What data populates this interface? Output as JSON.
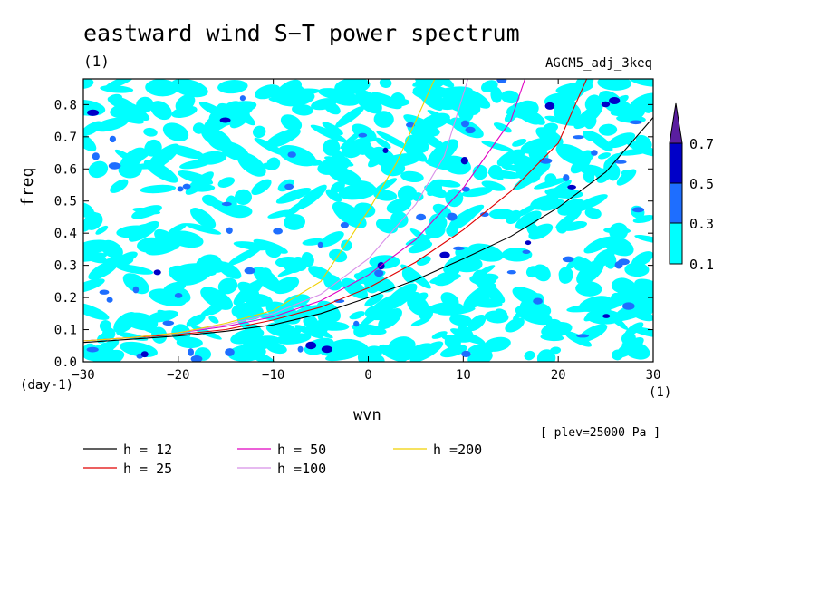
{
  "title": "eastward wind S−T power spectrum",
  "subtitle_unit": "(1)",
  "model_label": "AGCM5_adj_3keq",
  "plev_label": "[ plev=25000 Pa ]",
  "chart_data": {
    "type": "contour",
    "xlabel": "wvn",
    "ylabel": "freq",
    "x_unit": "(1)",
    "y_unit": "(day-1)",
    "xlim": [
      -30,
      30
    ],
    "ylim": [
      0,
      0.88
    ],
    "xticks": [
      -30,
      -20,
      -10,
      0,
      10,
      20,
      30
    ],
    "xtick_labels": [
      "−30",
      "−20",
      "−10",
      "0",
      "10",
      "20",
      "30"
    ],
    "yticks": [
      0.0,
      0.1,
      0.2,
      0.3,
      0.4,
      0.5,
      0.6,
      0.7,
      0.8
    ],
    "ytick_labels": [
      "0.0",
      "0.1",
      "0.2",
      "0.3",
      "0.4",
      "0.5",
      "0.6",
      "0.7",
      "0.8"
    ],
    "colorbar": {
      "levels": [
        0.1,
        0.3,
        0.5,
        0.7
      ],
      "level_labels": [
        "0.1",
        "0.3",
        "0.5",
        "0.7"
      ],
      "colors": [
        "#00ffff",
        "#1e6eff",
        "#0000c8",
        "#5a1ea0"
      ]
    },
    "dispersion_curves": [
      {
        "name": "h = 12",
        "color": "#000000",
        "points": [
          [
            -30,
            0.06
          ],
          [
            -25,
            0.07
          ],
          [
            -20,
            0.08
          ],
          [
            -15,
            0.095
          ],
          [
            -10,
            0.115
          ],
          [
            -5,
            0.15
          ],
          [
            0,
            0.2
          ],
          [
            5,
            0.255
          ],
          [
            10,
            0.32
          ],
          [
            15,
            0.39
          ],
          [
            20,
            0.48
          ],
          [
            25,
            0.59
          ],
          [
            30,
            0.76
          ]
        ]
      },
      {
        "name": "h = 25",
        "color": "#e00000",
        "points": [
          [
            -30,
            0.065
          ],
          [
            -25,
            0.075
          ],
          [
            -20,
            0.085
          ],
          [
            -15,
            0.1
          ],
          [
            -10,
            0.13
          ],
          [
            -5,
            0.17
          ],
          [
            0,
            0.23
          ],
          [
            5,
            0.31
          ],
          [
            10,
            0.41
          ],
          [
            15,
            0.53
          ],
          [
            20,
            0.68
          ],
          [
            23,
            0.88
          ]
        ]
      },
      {
        "name": "h = 50",
        "color": "#e000c0",
        "points": [
          [
            -30,
            0.065
          ],
          [
            -25,
            0.075
          ],
          [
            -20,
            0.09
          ],
          [
            -15,
            0.11
          ],
          [
            -10,
            0.14
          ],
          [
            -5,
            0.19
          ],
          [
            0,
            0.27
          ],
          [
            5,
            0.38
          ],
          [
            10,
            0.54
          ],
          [
            15,
            0.75
          ],
          [
            16.5,
            0.88
          ]
        ]
      },
      {
        "name": "h =100",
        "color": "#d890e8",
        "points": [
          [
            -30,
            0.065
          ],
          [
            -25,
            0.075
          ],
          [
            -20,
            0.09
          ],
          [
            -15,
            0.115
          ],
          [
            -10,
            0.15
          ],
          [
            -5,
            0.21
          ],
          [
            0,
            0.32
          ],
          [
            5,
            0.49
          ],
          [
            8,
            0.64
          ],
          [
            10.5,
            0.88
          ]
        ]
      },
      {
        "name": "h =200",
        "color": "#f0d000",
        "points": [
          [
            -30,
            0.065
          ],
          [
            -25,
            0.075
          ],
          [
            -20,
            0.09
          ],
          [
            -15,
            0.12
          ],
          [
            -10,
            0.16
          ],
          [
            -5,
            0.25
          ],
          [
            0,
            0.47
          ],
          [
            3,
            0.62
          ],
          [
            7,
            0.88
          ]
        ]
      }
    ]
  }
}
